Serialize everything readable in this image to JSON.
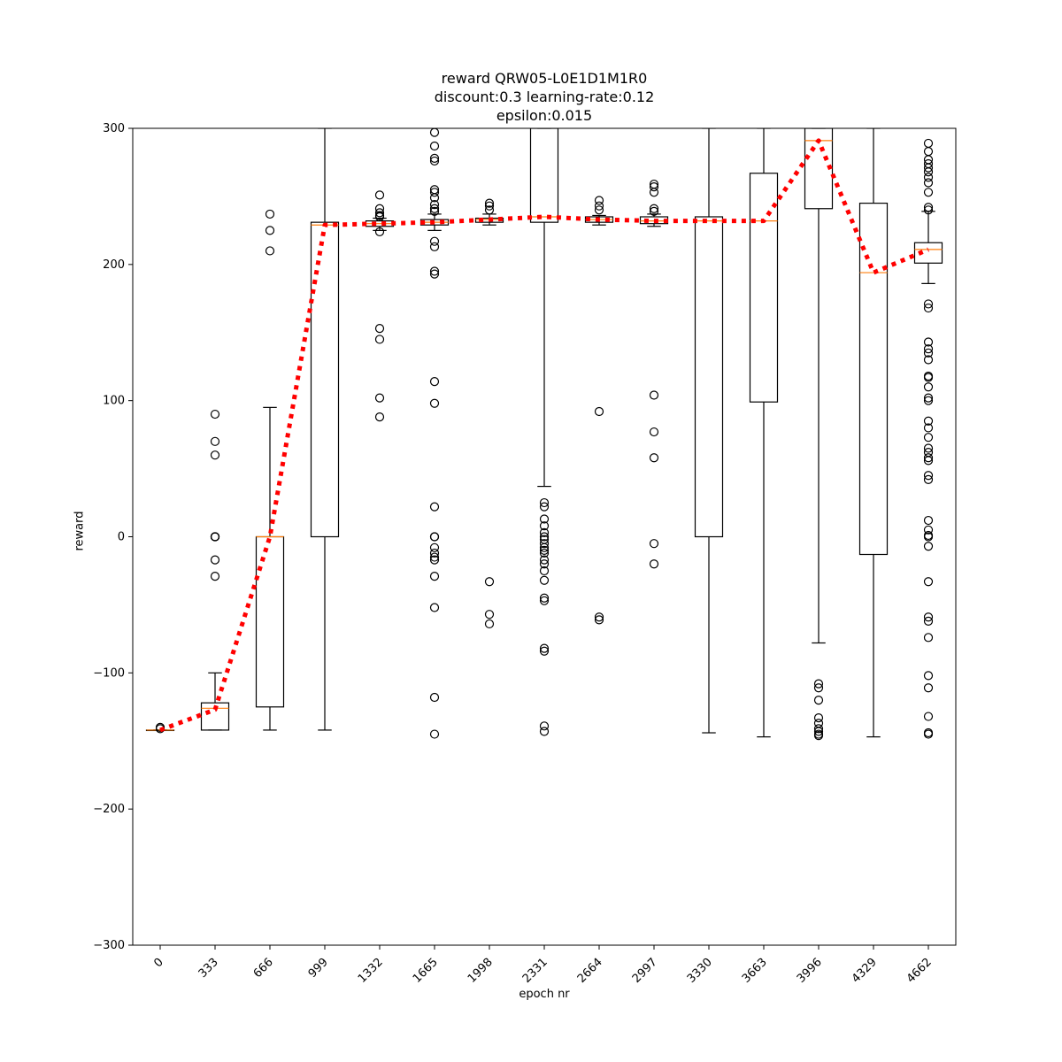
{
  "chart_data": {
    "type": "box",
    "title_lines": [
      "reward QRW05-L0E1D1M1R0",
      "discount:0.3 learning-rate:0.12",
      "epsilon:0.015"
    ],
    "xlabel": "epoch nr",
    "ylabel": "reward",
    "ylim": [
      -300,
      300
    ],
    "yticks": [
      -300,
      -200,
      -100,
      0,
      100,
      200,
      300
    ],
    "ytick_labels": [
      "−300",
      "−200",
      "−100",
      "0",
      "100",
      "200",
      "300"
    ],
    "categories": [
      "0",
      "333",
      "666",
      "999",
      "1332",
      "1665",
      "1998",
      "2331",
      "2664",
      "2997",
      "3330",
      "3663",
      "3996",
      "4329",
      "4662"
    ],
    "grid": false,
    "boxes": [
      {
        "q1": -142,
        "median": -142,
        "q3": -142,
        "whisker_low": -142,
        "whisker_high": -142,
        "fliers": [
          -140,
          -141
        ]
      },
      {
        "q1": -142,
        "median": -126,
        "q3": -122,
        "whisker_low": -142,
        "whisker_high": -100,
        "fliers": [
          90,
          70,
          60,
          0,
          0,
          0,
          0,
          -17,
          -29
        ]
      },
      {
        "q1": -125,
        "median": 0,
        "q3": 0,
        "whisker_low": -142,
        "whisker_high": 95,
        "fliers": [
          237,
          225,
          210
        ]
      },
      {
        "q1": 0,
        "median": 229,
        "q3": 231,
        "whisker_low": -142,
        "whisker_high": 300,
        "fliers": []
      },
      {
        "q1": 228,
        "median": 230,
        "q3": 232,
        "whisker_low": 225,
        "whisker_high": 234,
        "fliers": [
          251,
          241,
          238,
          236,
          235,
          224,
          153,
          145,
          102,
          88
        ]
      },
      {
        "q1": 229,
        "median": 231,
        "q3": 233,
        "whisker_low": 225,
        "whisker_high": 237,
        "fliers": [
          297,
          287,
          278,
          276,
          255,
          253,
          249,
          244,
          241,
          239,
          213,
          217,
          195,
          193,
          114,
          98,
          22,
          0,
          0,
          -8,
          -12,
          -15,
          -17,
          -29,
          -52,
          -118,
          -145
        ]
      },
      {
        "q1": 231,
        "median": 233,
        "q3": 234,
        "whisker_low": 229,
        "whisker_high": 237,
        "fliers": [
          245,
          243,
          240,
          -33,
          -57,
          -64
        ]
      },
      {
        "q1": 231,
        "median": 235,
        "q3": 300,
        "whisker_low": 37,
        "whisker_high": 300,
        "fliers": [
          25,
          22,
          13,
          8,
          3,
          0,
          -2,
          -5,
          -8,
          -10,
          -12,
          -17,
          -20,
          -25,
          -32,
          -45,
          -47,
          -82,
          -84,
          -139,
          -143
        ]
      },
      {
        "q1": 231,
        "median": 233,
        "q3": 235,
        "whisker_low": 229,
        "whisker_high": 236,
        "fliers": [
          247,
          243,
          240,
          92,
          -59,
          -61
        ]
      },
      {
        "q1": 230,
        "median": 232,
        "q3": 235,
        "whisker_low": 228,
        "whisker_high": 237,
        "fliers": [
          259,
          257,
          253,
          241,
          239,
          104,
          77,
          58,
          -5,
          -20
        ]
      },
      {
        "q1": 0,
        "median": 232,
        "q3": 235,
        "whisker_low": -144,
        "whisker_high": 300,
        "fliers": []
      },
      {
        "q1": 99,
        "median": 232,
        "q3": 267,
        "whisker_low": -147,
        "whisker_high": 300,
        "fliers": []
      },
      {
        "q1": 241,
        "median": 291,
        "q3": 300,
        "whisker_low": -78,
        "whisker_high": 300,
        "fliers": [
          -108,
          -111,
          -120,
          -133,
          -137,
          -141,
          -143,
          -145,
          -146
        ]
      },
      {
        "q1": -13,
        "median": 194,
        "q3": 245,
        "whisker_low": -147,
        "whisker_high": 300,
        "fliers": []
      },
      {
        "q1": 201,
        "median": 211,
        "q3": 216,
        "whisker_low": 186,
        "whisker_high": 239,
        "fliers": [
          289,
          283,
          277,
          274,
          271,
          268,
          264,
          260,
          253,
          242,
          240,
          171,
          168,
          143,
          138,
          135,
          130,
          118,
          117,
          110,
          102,
          100,
          85,
          80,
          73,
          65,
          62,
          58,
          56,
          45,
          42,
          12,
          5,
          1,
          0,
          -7,
          -33,
          -59,
          -62,
          -74,
          -102,
          -111,
          -132,
          -144,
          -145
        ]
      }
    ],
    "mean_line": {
      "color": "#ff0000",
      "style": "dotted",
      "values": [
        -142,
        -127,
        0,
        229,
        230,
        231,
        233,
        235,
        233,
        232,
        232,
        232,
        291,
        194,
        211
      ]
    },
    "colors": {
      "box": "#000000",
      "median": "#ff7f0e",
      "mean_line": "#ff0000"
    }
  }
}
